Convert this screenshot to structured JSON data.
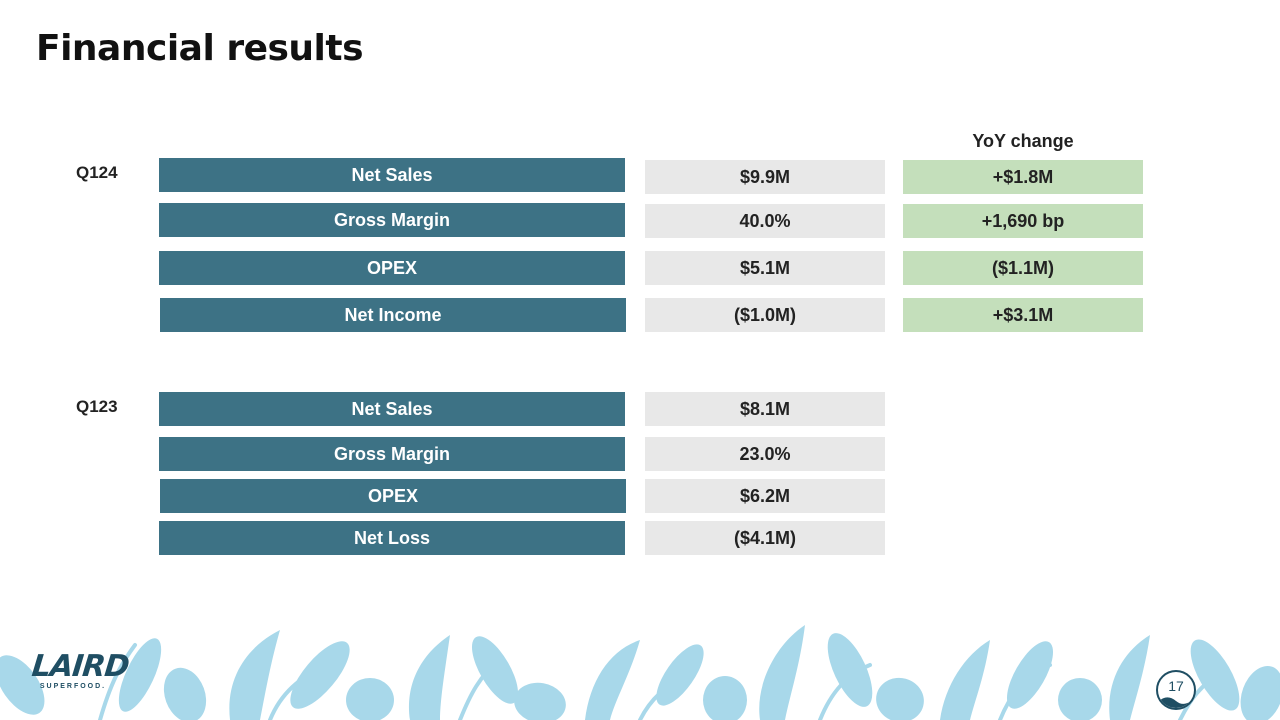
{
  "slide": {
    "title": "Financial results",
    "page_number": "17"
  },
  "yoy_header": "YoY change",
  "q124": {
    "label": "Q124",
    "rows": [
      {
        "metric": "Net Sales",
        "value": "$9.9M",
        "change": "+$1.8M"
      },
      {
        "metric": "Gross Margin",
        "value": "40.0%",
        "change": "+1,690 bp"
      },
      {
        "metric": "OPEX",
        "value": "$5.1M",
        "change": "($1.1M)"
      },
      {
        "metric": "Net Income",
        "value": "($1.0M)",
        "change": "+$3.1M"
      }
    ]
  },
  "q123": {
    "label": "Q123",
    "rows": [
      {
        "metric": "Net Sales",
        "value": "$8.1M"
      },
      {
        "metric": "Gross Margin",
        "value": "23.0%"
      },
      {
        "metric": "OPEX",
        "value": "$6.2M"
      },
      {
        "metric": "Net Loss",
        "value": "($4.1M)"
      }
    ]
  },
  "logo": {
    "main": "LAIRD",
    "sub": "SUPERFOOD."
  },
  "colors": {
    "label_fill": "#3d7285",
    "value_fill": "#e8e8e8",
    "change_fill": "#c4dfbb",
    "leaf_pattern": "#a8d8ea",
    "brand_navy": "#1f4e63"
  }
}
